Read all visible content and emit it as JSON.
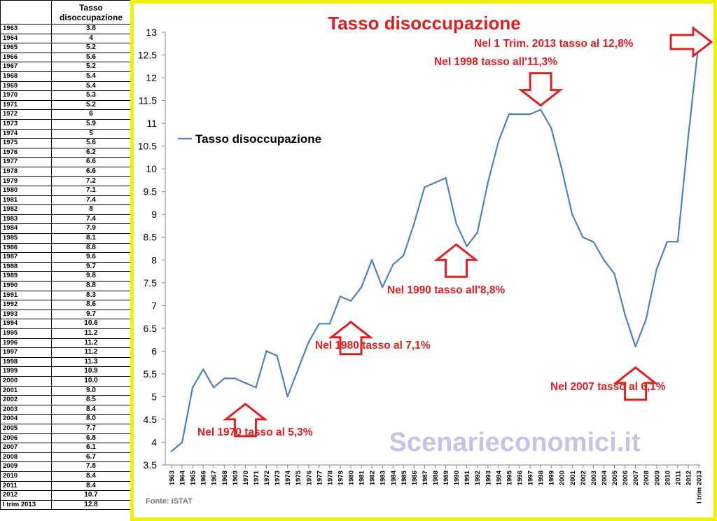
{
  "table": {
    "header_year": "",
    "header_value": "Tasso disoccupazione",
    "rows": [
      {
        "year": "1963",
        "value": "3.8"
      },
      {
        "year": "1964",
        "value": "4"
      },
      {
        "year": "1965",
        "value": "5.2"
      },
      {
        "year": "1966",
        "value": "5.6"
      },
      {
        "year": "1967",
        "value": "5.2"
      },
      {
        "year": "1968",
        "value": "5.4"
      },
      {
        "year": "1969",
        "value": "5.4"
      },
      {
        "year": "1970",
        "value": "5.3"
      },
      {
        "year": "1971",
        "value": "5.2"
      },
      {
        "year": "1972",
        "value": "6"
      },
      {
        "year": "1973",
        "value": "5.9"
      },
      {
        "year": "1974",
        "value": "5"
      },
      {
        "year": "1975",
        "value": "5.6"
      },
      {
        "year": "1976",
        "value": "6.2"
      },
      {
        "year": "1977",
        "value": "6.6"
      },
      {
        "year": "1978",
        "value": "6.6"
      },
      {
        "year": "1979",
        "value": "7.2"
      },
      {
        "year": "1980",
        "value": "7.1"
      },
      {
        "year": "1981",
        "value": "7.4"
      },
      {
        "year": "1982",
        "value": "8"
      },
      {
        "year": "1983",
        "value": "7.4"
      },
      {
        "year": "1984",
        "value": "7.9"
      },
      {
        "year": "1985",
        "value": "8.1"
      },
      {
        "year": "1986",
        "value": "8.8"
      },
      {
        "year": "1987",
        "value": "9.6"
      },
      {
        "year": "1988",
        "value": "9.7"
      },
      {
        "year": "1989",
        "value": "9.8"
      },
      {
        "year": "1990",
        "value": "8.8"
      },
      {
        "year": "1991",
        "value": "8.3"
      },
      {
        "year": "1992",
        "value": "8.6"
      },
      {
        "year": "1993",
        "value": "9.7"
      },
      {
        "year": "1994",
        "value": "10.6"
      },
      {
        "year": "1995",
        "value": "11.2"
      },
      {
        "year": "1996",
        "value": "11.2"
      },
      {
        "year": "1997",
        "value": "11.2"
      },
      {
        "year": "1998",
        "value": "11.3"
      },
      {
        "year": "1999",
        "value": "10.9"
      },
      {
        "year": "2000",
        "value": "10.0"
      },
      {
        "year": "2001",
        "value": "9.0"
      },
      {
        "year": "2002",
        "value": "8.5"
      },
      {
        "year": "2003",
        "value": "8.4"
      },
      {
        "year": "2004",
        "value": "8.0"
      },
      {
        "year": "2005",
        "value": "7.7"
      },
      {
        "year": "2006",
        "value": "6.8"
      },
      {
        "year": "2007",
        "value": "6.1"
      },
      {
        "year": "2008",
        "value": "6.7"
      },
      {
        "year": "2009",
        "value": "7.8"
      },
      {
        "year": "2010",
        "value": "8.4"
      },
      {
        "year": "2011",
        "value": "8.4"
      },
      {
        "year": "2012",
        "value": "10.7"
      },
      {
        "year": "I trim 2013",
        "value": "12.8"
      }
    ]
  },
  "chart_data": {
    "type": "line",
    "title": "Tasso disoccupazione",
    "xlabel": "",
    "ylabel": "",
    "ylim": [
      3.5,
      13
    ],
    "yticks": [
      3.5,
      4,
      4.5,
      5,
      5.5,
      6,
      6.5,
      7,
      7.5,
      8,
      8.5,
      9,
      9.5,
      10,
      10.5,
      11,
      11.5,
      12,
      12.5,
      13
    ],
    "grid": false,
    "legend_position": "left",
    "categories": [
      "1963",
      "1964",
      "1965",
      "1966",
      "1967",
      "1968",
      "1969",
      "1970",
      "1971",
      "1972",
      "1973",
      "1974",
      "1975",
      "1976",
      "1977",
      "1978",
      "1979",
      "1980",
      "1981",
      "1982",
      "1983",
      "1984",
      "1985",
      "1986",
      "1987",
      "1988",
      "1989",
      "1990",
      "1991",
      "1992",
      "1993",
      "1994",
      "1995",
      "1996",
      "1997",
      "1998",
      "1999",
      "2000",
      "2001",
      "2002",
      "2003",
      "2004",
      "2005",
      "2006",
      "2007",
      "2008",
      "2009",
      "2010",
      "2011",
      "2012",
      "I trim 2013"
    ],
    "series": [
      {
        "name": "Tasso disoccupazione",
        "color": "#4f81bd",
        "values": [
          3.8,
          4,
          5.2,
          5.6,
          5.2,
          5.4,
          5.4,
          5.3,
          5.2,
          6,
          5.9,
          5,
          5.6,
          6.2,
          6.6,
          6.6,
          7.2,
          7.1,
          7.4,
          8,
          7.4,
          7.9,
          8.1,
          8.8,
          9.6,
          9.7,
          9.8,
          8.8,
          8.3,
          8.6,
          9.7,
          10.6,
          11.2,
          11.2,
          11.2,
          11.3,
          10.9,
          10.0,
          9.0,
          8.5,
          8.4,
          8.0,
          7.7,
          6.8,
          6.1,
          6.7,
          7.8,
          8.4,
          8.4,
          10.7,
          12.8
        ]
      }
    ],
    "annotations": [
      {
        "text": "Nel 1970 tasso al 5,3%",
        "category": "1970",
        "arrow": "up"
      },
      {
        "text": "Nel 1980 tasso al 7,1%",
        "category": "1980",
        "arrow": "up"
      },
      {
        "text": "Nel 1990 tasso all'8,8%",
        "category": "1990",
        "arrow": "up"
      },
      {
        "text": "Nel 1998 tasso all'11,3%",
        "category": "1998",
        "arrow": "down"
      },
      {
        "text": "Nel 2007 tasso al 6,1%",
        "category": "2007",
        "arrow": "up"
      },
      {
        "text": "Nel 1 Trim. 2013 tasso al 12,8%",
        "category": "I trim 2013",
        "arrow": "right"
      }
    ],
    "annotation_color": "#e02020",
    "watermark": "Scenarieconomici.it",
    "watermark_color": "#c9c2e8",
    "source": "Fonte: ISTAT",
    "frame_color": "#f2f200"
  }
}
